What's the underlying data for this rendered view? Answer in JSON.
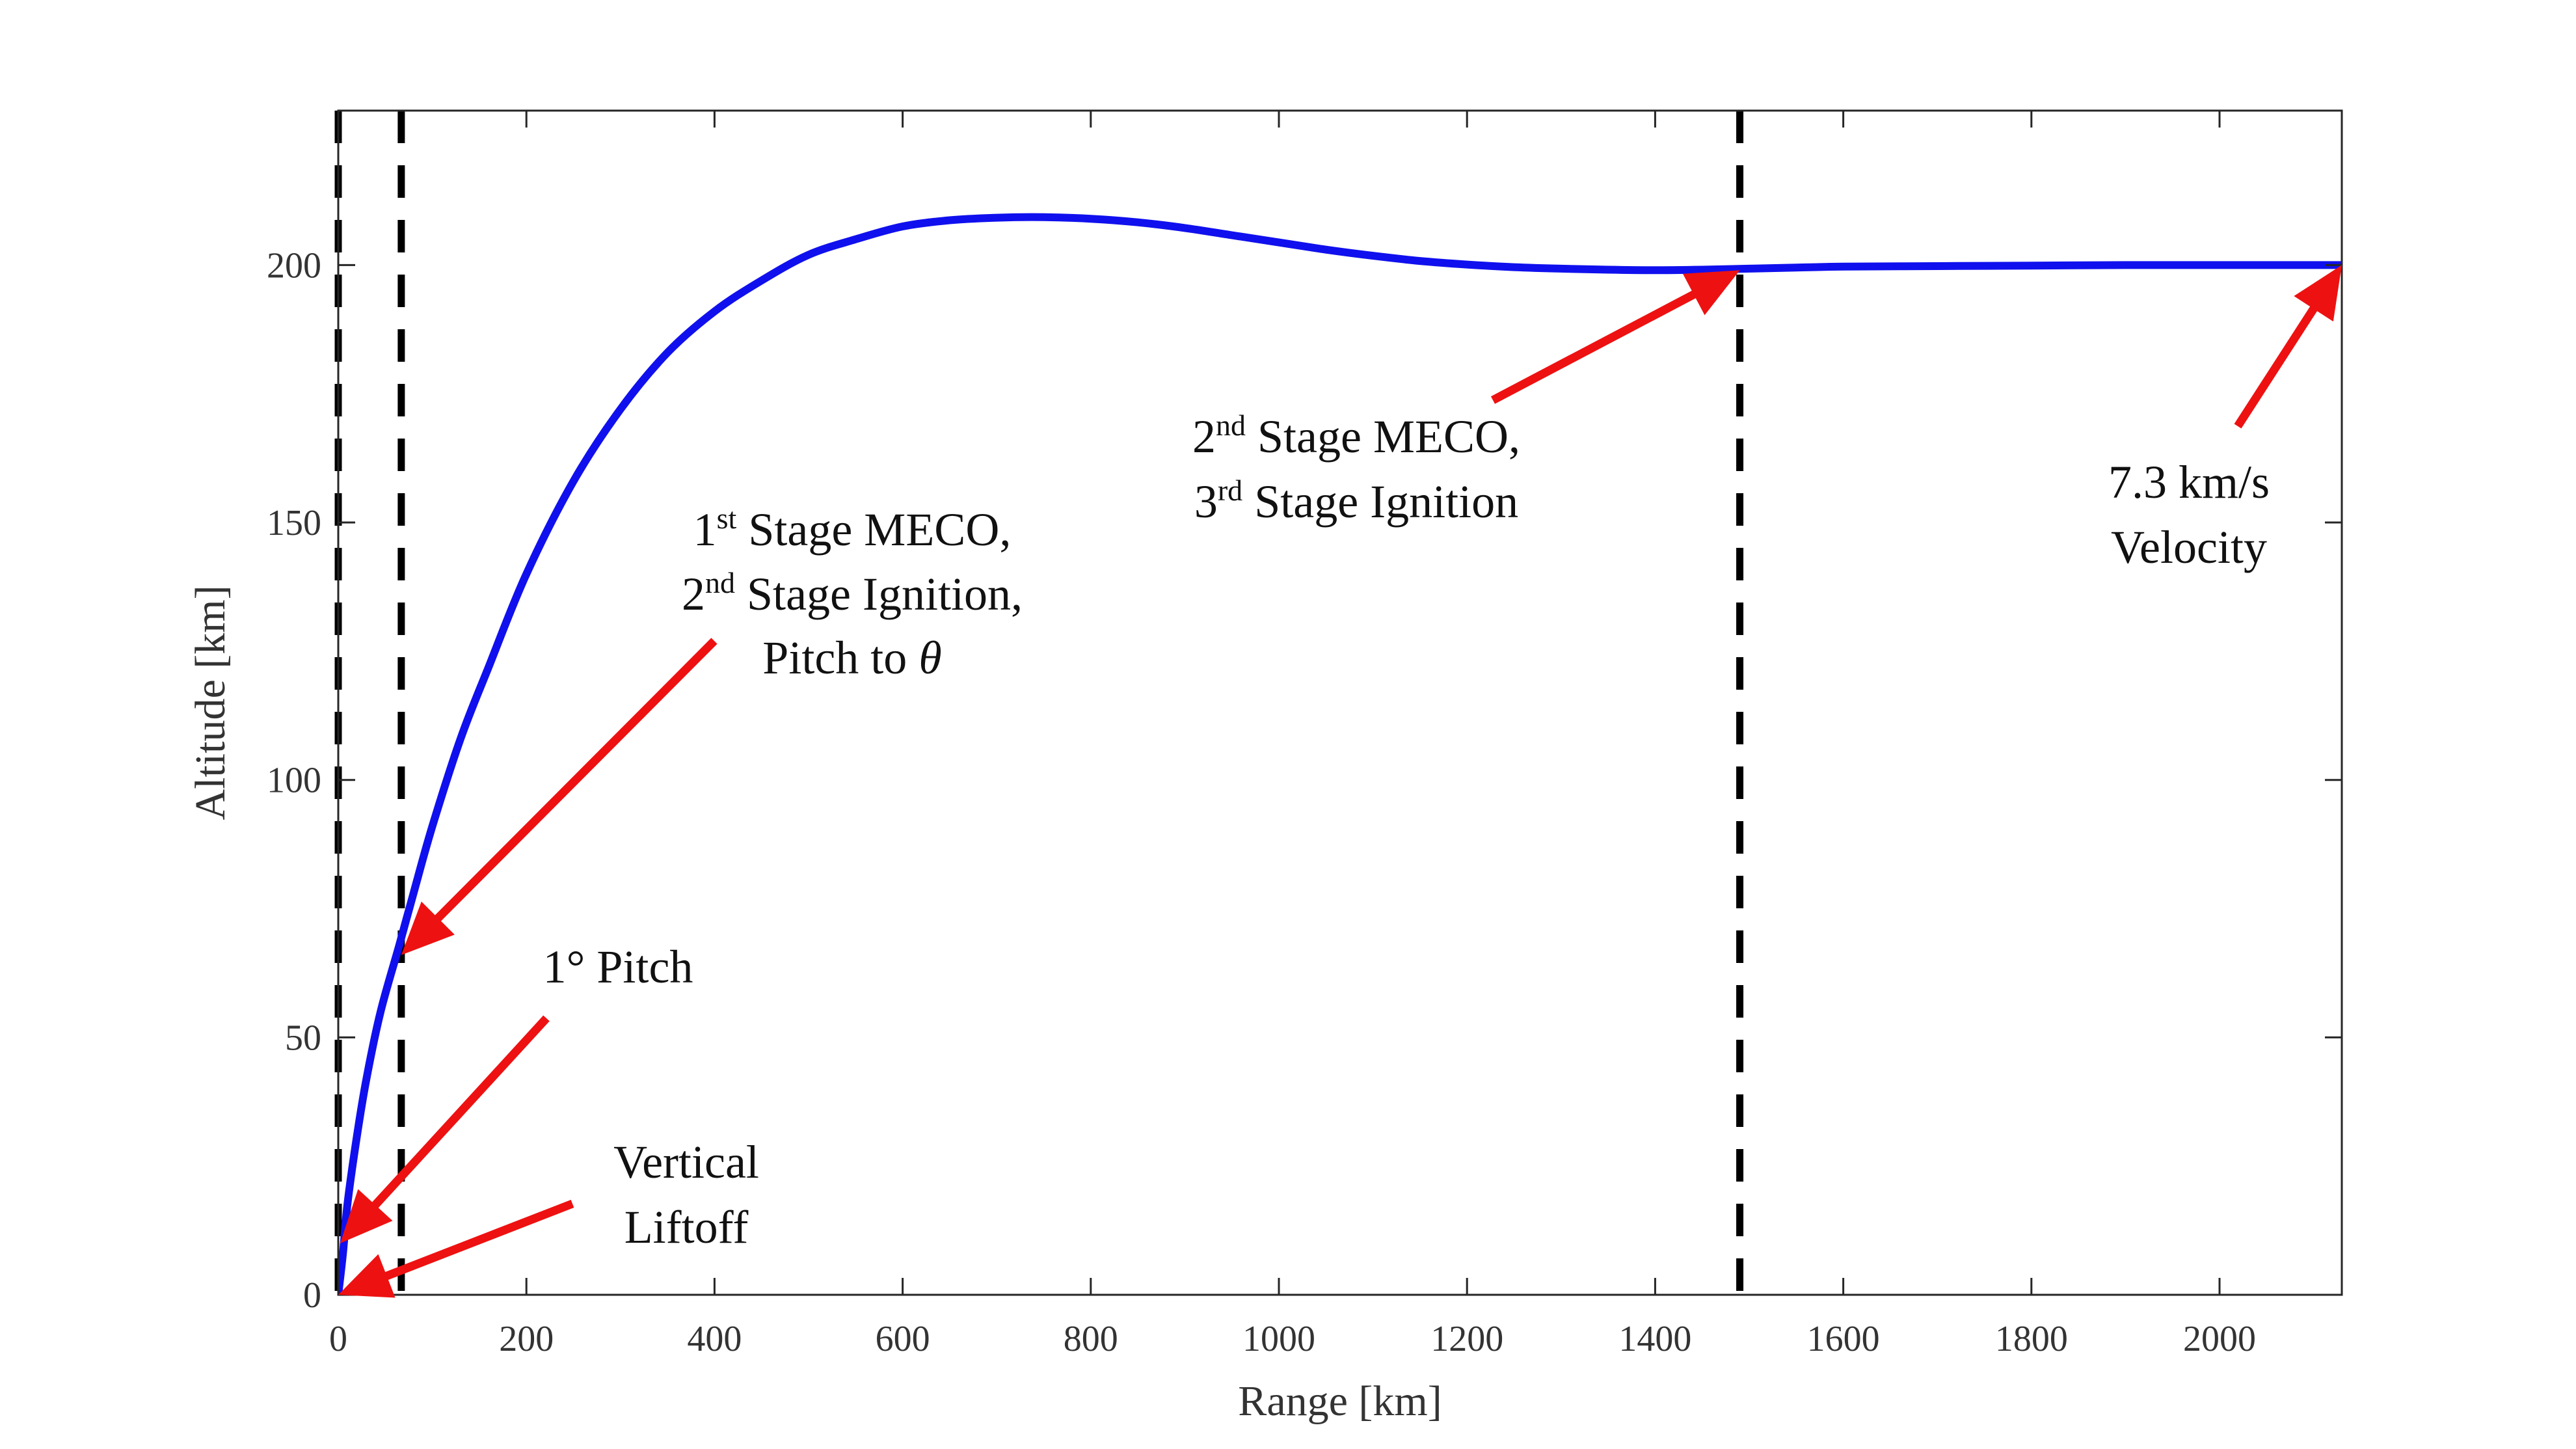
{
  "chart_data": {
    "type": "line",
    "title": "",
    "xlabel": "Range [km]",
    "ylabel": "Altitude [km]",
    "xlim": [
      0,
      2130
    ],
    "ylim": [
      0,
      230
    ],
    "x_ticks": [
      0,
      200,
      400,
      600,
      800,
      1000,
      1200,
      1400,
      1600,
      1800,
      2000
    ],
    "y_ticks": [
      0,
      50,
      100,
      150,
      200
    ],
    "grid": false,
    "legend": "none",
    "series": [
      {
        "color": "#1010ee",
        "x": [
          0,
          5,
          10,
          20,
          30,
          45,
          65,
          80,
          100,
          130,
          160,
          200,
          250,
          300,
          350,
          400,
          450,
          500,
          550,
          600,
          650,
          700,
          750,
          800,
          850,
          900,
          950,
          1000,
          1050,
          1100,
          1150,
          1200,
          1250,
          1300,
          1350,
          1400,
          1450,
          1500,
          1550,
          1600,
          1700,
          1800,
          1900,
          2000,
          2130
        ],
        "y": [
          0,
          8,
          18,
          31,
          42,
          55,
          68,
          78,
          91,
          108,
          122,
          140,
          158,
          172,
          183,
          191,
          197,
          202,
          205,
          207.5,
          208.7,
          209.2,
          209.3,
          209,
          208.3,
          207.2,
          205.8,
          204.4,
          203,
          201.8,
          200.8,
          200.1,
          199.6,
          199.3,
          199.1,
          199,
          199.1,
          199.3,
          199.5,
          199.7,
          199.8,
          199.9,
          200,
          200,
          200
        ]
      }
    ],
    "reference_lines": [
      {
        "axis": "x",
        "value": 0,
        "style": "dashed",
        "color": "#000000"
      },
      {
        "axis": "x",
        "value": 67,
        "style": "dashed",
        "color": "#000000"
      },
      {
        "axis": "x",
        "value": 1490,
        "style": "dashed",
        "color": "#000000"
      }
    ],
    "arrow_color": "#ee1111",
    "annotations": [
      {
        "id": "vertical-liftoff",
        "lines": [
          [
            {
              "text": "Vertical"
            }
          ],
          [
            {
              "text": "Liftoff"
            }
          ]
        ],
        "arrow_to": [
          0,
          0
        ]
      },
      {
        "id": "pitch-1deg",
        "lines": [
          [
            {
              "text": "1° Pitch"
            }
          ]
        ],
        "arrow_to": [
          2,
          10
        ]
      },
      {
        "id": "first-stage-meco",
        "lines": [
          [
            {
              "text": "1"
            },
            {
              "text": "st",
              "sup": true
            },
            {
              "text": " Stage MECO,"
            }
          ],
          [
            {
              "text": "2"
            },
            {
              "text": "nd",
              "sup": true
            },
            {
              "text": " Stage Ignition,"
            }
          ],
          [
            {
              "text": "Pitch to "
            },
            {
              "text": "θ",
              "italic": true
            }
          ]
        ],
        "arrow_to": [
          67,
          66
        ]
      },
      {
        "id": "second-stage-meco",
        "lines": [
          [
            {
              "text": "2"
            },
            {
              "text": "nd",
              "sup": true
            },
            {
              "text": " Stage MECO,"
            }
          ],
          [
            {
              "text": "3"
            },
            {
              "text": "rd",
              "sup": true
            },
            {
              "text": " Stage Ignition"
            }
          ]
        ],
        "arrow_to": [
          1490,
          199
        ]
      },
      {
        "id": "final-velocity",
        "lines": [
          [
            {
              "text": "7.3 km/s"
            }
          ],
          [
            {
              "text": "Velocity"
            }
          ]
        ],
        "arrow_to": [
          2130,
          200
        ]
      }
    ]
  }
}
